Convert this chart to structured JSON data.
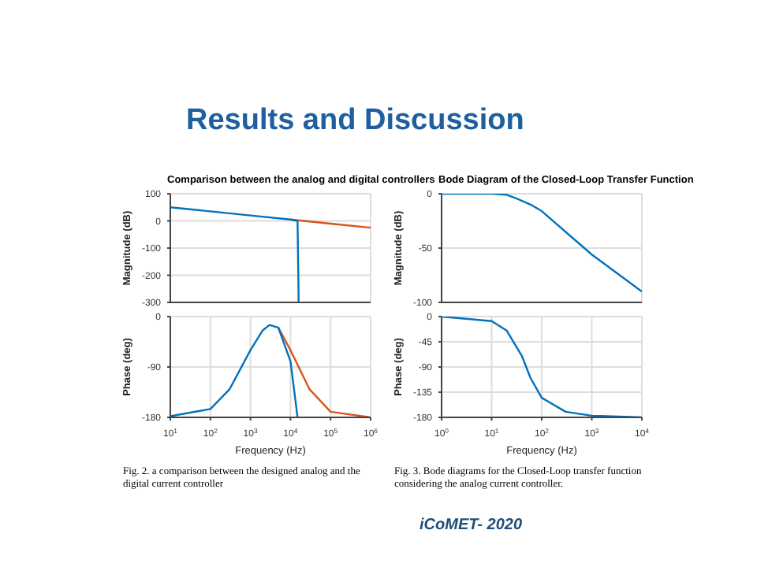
{
  "chart_data": [
    {
      "type": "line",
      "title": "Comparison between the analog and digital controllers",
      "ylabel": "Magnitude (dB)",
      "log": "x",
      "xlim": [
        10,
        1000000
      ],
      "xticks": [
        {
          "value": 10,
          "label": null
        },
        {
          "value": 100,
          "label": null
        },
        {
          "value": 1000,
          "label": null
        },
        {
          "value": 10000,
          "label": null
        },
        {
          "value": 100000,
          "label": null
        },
        {
          "value": 1000000,
          "label": null
        }
      ],
      "ylim": [
        -300,
        100
      ],
      "yticks": [
        -300,
        -200,
        -100,
        0,
        100
      ],
      "grid": true,
      "tick_labels": "y",
      "marker": "none",
      "line_style": "solid",
      "series": [
        {
          "color": "#d95319",
          "x": [
            10000,
            100000,
            1000000
          ],
          "values": [
            5,
            -10,
            -25
          ]
        },
        {
          "color": "#0072bd",
          "x": [
            10,
            100,
            1000,
            10000,
            15000,
            16000
          ],
          "values": [
            50,
            35,
            20,
            5,
            0,
            -300
          ]
        }
      ]
    },
    {
      "type": "line",
      "xlabel": "Frequency (Hz)",
      "ylabel": "Phase (deg)",
      "log": "x",
      "xlim": [
        10,
        1000000
      ],
      "xticks": [
        {
          "value": 10,
          "label": "10$^{1}$"
        },
        {
          "value": 100,
          "label": "10$^{2}$"
        },
        {
          "value": 1000,
          "label": "10$^{3}$"
        },
        {
          "value": 10000,
          "label": "10$^{4}$"
        },
        {
          "value": 100000,
          "label": "10$^{5}$"
        },
        {
          "value": 1000000,
          "label": "10$^{6}$"
        }
      ],
      "ylim": [
        -180,
        0
      ],
      "yticks": [
        -180,
        -90,
        0
      ],
      "grid": true,
      "marker": "none",
      "line_style": "solid",
      "series": [
        {
          "color": "#d95319",
          "x": [
            5000,
            10000,
            30000,
            100000,
            1000000
          ],
          "values": [
            -20,
            -60,
            -130,
            -170,
            -180
          ]
        },
        {
          "color": "#0072bd",
          "x": [
            10,
            100,
            300,
            1000,
            2000,
            3000,
            5000,
            10000,
            15000
          ],
          "values": [
            -178,
            -165,
            -130,
            -60,
            -25,
            -15,
            -20,
            -80,
            -180
          ]
        }
      ],
      "annotations": [
        "Fig. 2.  a comparison between the designed analog and the digital current controller"
      ]
    },
    {
      "type": "line",
      "title": "Bode Diagram of the Closed-Loop Transfer Function",
      "ylabel": "Magnitude (dB)",
      "log": "x",
      "xlim": [
        1,
        10000
      ],
      "xticks": [
        {
          "value": 1,
          "label": null
        },
        {
          "value": 10,
          "label": null
        },
        {
          "value": 100,
          "label": null
        },
        {
          "value": 1000,
          "label": null
        },
        {
          "value": 10000,
          "label": null
        }
      ],
      "ylim": [
        -100,
        0
      ],
      "yticks": [
        -100,
        -50,
        0
      ],
      "grid": true,
      "tick_labels": "y",
      "marker": "none",
      "line_style": "solid",
      "series": [
        {
          "color": "#0072bd",
          "x": [
            1,
            10,
            20,
            30,
            60,
            100,
            1000,
            10000
          ],
          "values": [
            0,
            0,
            -1,
            -4,
            -10,
            -16,
            -56,
            -90
          ]
        }
      ]
    },
    {
      "type": "line",
      "xlabel": "Frequency (Hz)",
      "ylabel": "Phase (deg)",
      "log": "x",
      "xlim": [
        1,
        10000
      ],
      "xticks": [
        {
          "value": 1,
          "label": "10$^{0}$"
        },
        {
          "value": 10,
          "label": "10$^{1}$"
        },
        {
          "value": 100,
          "label": "10$^{2}$"
        },
        {
          "value": 1000,
          "label": "10$^{3}$"
        },
        {
          "value": 10000,
          "label": "10$^{4}$"
        }
      ],
      "ylim": [
        -180,
        0
      ],
      "yticks": [
        -180,
        -135,
        -90,
        -45,
        0
      ],
      "grid": true,
      "marker": "none",
      "line_style": "solid",
      "series": [
        {
          "color": "#0072bd",
          "x": [
            1,
            10,
            20,
            40,
            60,
            100,
            300,
            1000,
            10000
          ],
          "values": [
            0,
            -8,
            -25,
            -70,
            -110,
            -145,
            -170,
            -177,
            -180
          ]
        }
      ],
      "annotations": [
        "Fig. 3.  Bode diagrams for the Closed-Loop transfer function considering the analog current controller."
      ]
    },
    {
      "type": "other",
      "title": "Results and Discussion",
      "annotations": [
        "iCoMET- 2020"
      ]
    }
  ]
}
